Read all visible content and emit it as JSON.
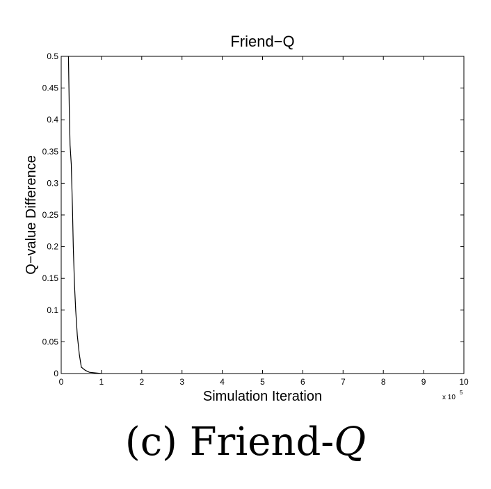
{
  "chart_data": {
    "type": "line",
    "title": "Friend−Q",
    "xlabel": "Simulation Iteration",
    "ylabel": "Q−value Difference",
    "x_multiplier_label": "x 10",
    "x_multiplier_exponent": "5",
    "xlim": [
      0,
      10
    ],
    "ylim": [
      0,
      0.5
    ],
    "x_ticks": [
      "0",
      "1",
      "2",
      "3",
      "4",
      "5",
      "6",
      "7",
      "8",
      "9",
      "10"
    ],
    "y_ticks": [
      "0",
      "0.05",
      "0.1",
      "0.15",
      "0.2",
      "0.25",
      "0.3",
      "0.35",
      "0.4",
      "0.45",
      "0.5"
    ],
    "grid": false,
    "series": [
      {
        "color": "#000000",
        "x": [
          0.18,
          0.2,
          0.22,
          0.25,
          0.28,
          0.3,
          0.33,
          0.36,
          0.4,
          0.45,
          0.5,
          0.6,
          0.7,
          0.85,
          1.0
        ],
        "y": [
          0.5,
          0.42,
          0.36,
          0.33,
          0.26,
          0.2,
          0.14,
          0.1,
          0.06,
          0.03,
          0.01,
          0.005,
          0.002,
          0.001,
          0.0
        ]
      }
    ]
  },
  "caption": {
    "prefix": "(c) Friend-",
    "emphasis": "Q"
  }
}
